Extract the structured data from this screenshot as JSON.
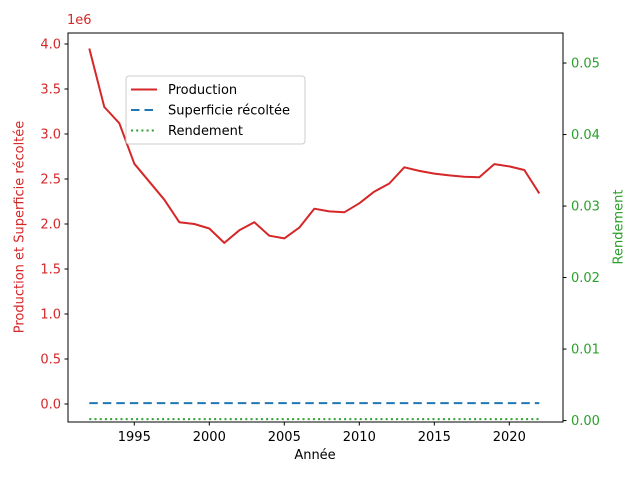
{
  "window": {
    "background": "#ffffff"
  },
  "chart_data": {
    "type": "line",
    "title": "",
    "xlabel": "Année",
    "ylabel_left": "Production et Superficie récoltée",
    "ylabel_right": "Rendement",
    "offset_text_left_axis": "1e6",
    "grid": false,
    "legend_position": "upper left inset",
    "axis_colors": {
      "left": "#d62728",
      "right": "#2ca02c",
      "x": "#000000"
    },
    "xlim": [
      1990.58,
      2023.58
    ],
    "ylim_left": [
      -200000,
      4122000
    ],
    "ylim_right": [
      -0.0002,
      0.0542
    ],
    "x_ticks": [
      {
        "label": "1995",
        "value": 1995
      },
      {
        "label": "2000",
        "value": 2000
      },
      {
        "label": "2005",
        "value": 2005
      },
      {
        "label": "2010",
        "value": 2010
      },
      {
        "label": "2015",
        "value": 2015
      },
      {
        "label": "2020",
        "value": 2020
      }
    ],
    "y_ticks_left": [
      {
        "label": "0.0",
        "value": 0
      },
      {
        "label": "0.5",
        "value": 500000
      },
      {
        "label": "1.0",
        "value": 1000000
      },
      {
        "label": "1.5",
        "value": 1500000
      },
      {
        "label": "2.0",
        "value": 2000000
      },
      {
        "label": "2.5",
        "value": 2500000
      },
      {
        "label": "3.0",
        "value": 3000000
      },
      {
        "label": "3.5",
        "value": 3500000
      },
      {
        "label": "4.0",
        "value": 4000000
      }
    ],
    "y_ticks_right": [
      {
        "label": "0.00",
        "value": 0.0
      },
      {
        "label": "0.01",
        "value": 0.01
      },
      {
        "label": "0.02",
        "value": 0.02
      },
      {
        "label": "0.03",
        "value": 0.03
      },
      {
        "label": "0.04",
        "value": 0.04
      },
      {
        "label": "0.05",
        "value": 0.05
      }
    ],
    "x": [
      1992,
      1993,
      1994,
      1995,
      1996,
      1997,
      1998,
      1999,
      2000,
      2001,
      2002,
      2003,
      2004,
      2005,
      2006,
      2007,
      2008,
      2009,
      2010,
      2011,
      2012,
      2013,
      2014,
      2015,
      2016,
      2017,
      2018,
      2019,
      2020,
      2021,
      2022
    ],
    "series": [
      {
        "name": "Production",
        "axis": "left",
        "color": "#d62728",
        "line_style": "solid",
        "values": [
          3950000,
          3300000,
          3120000,
          2670000,
          2470000,
          2270000,
          2020000,
          2000000,
          1950000,
          1790000,
          1930000,
          2020000,
          1870000,
          1840000,
          1960000,
          2170000,
          2140000,
          2130000,
          2230000,
          2360000,
          2450000,
          2630000,
          2590000,
          2560000,
          2540000,
          2525000,
          2520000,
          2665000,
          2640000,
          2600000,
          2340000
        ]
      },
      {
        "name": "Superficie récoltée",
        "axis": "left",
        "color": "#1f77b4",
        "line_style": "dashed",
        "values": [
          10000,
          10000,
          10000,
          10000,
          10000,
          10000,
          10000,
          10000,
          10000,
          10000,
          10000,
          10000,
          10000,
          10000,
          10000,
          10000,
          10000,
          10000,
          10000,
          10000,
          10000,
          10000,
          10000,
          10000,
          10000,
          10000,
          10000,
          10000,
          10000,
          10000,
          10000
        ]
      },
      {
        "name": "Rendement",
        "axis": "right",
        "color": "#2ca02c",
        "line_style": "dotted",
        "values": [
          0.0002,
          0.0002,
          0.0002,
          0.0002,
          0.0002,
          0.0002,
          0.0002,
          0.0002,
          0.0002,
          0.0002,
          0.0002,
          0.0002,
          0.0002,
          0.0002,
          0.0002,
          0.0002,
          0.0002,
          0.0002,
          0.0002,
          0.0002,
          0.0002,
          0.0002,
          0.0002,
          0.0002,
          0.0002,
          0.0002,
          0.0002,
          0.0002,
          0.0002,
          0.0002,
          0.0002
        ]
      }
    ],
    "legend": {
      "entries": [
        "Production",
        "Superficie récoltée",
        "Rendement"
      ]
    }
  }
}
